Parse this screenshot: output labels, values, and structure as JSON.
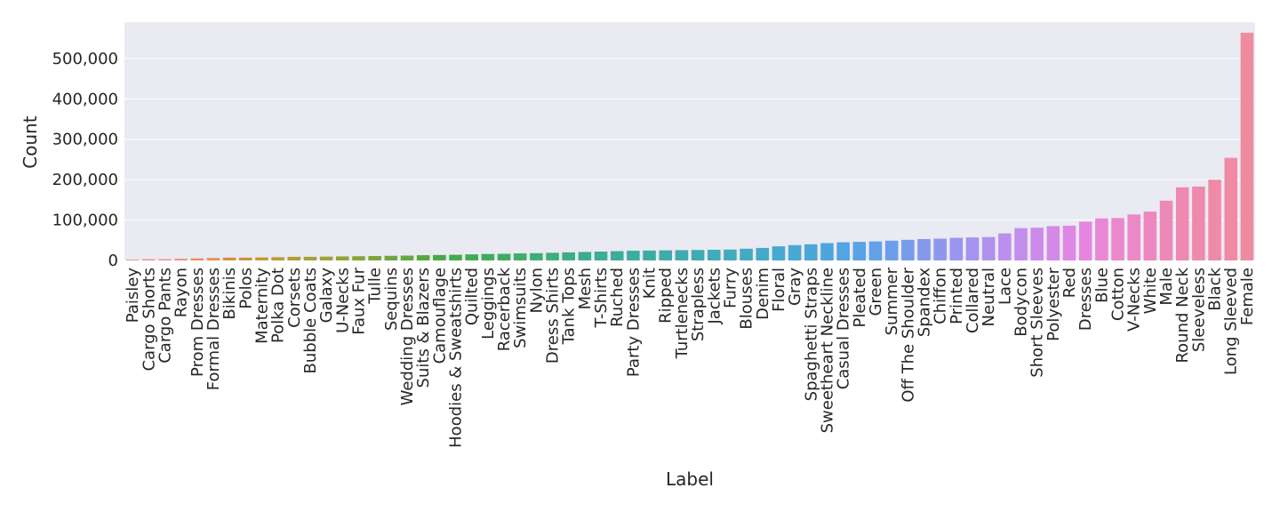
{
  "chart_data": {
    "type": "bar",
    "xlabel": "Label",
    "ylabel": "Count",
    "ylim": [
      0,
      590000
    ],
    "y_ticks": [
      0,
      100000,
      200000,
      300000,
      400000,
      500000
    ],
    "y_tick_labels": [
      "0",
      "100,000",
      "200,000",
      "300,000",
      "400,000",
      "500,000"
    ],
    "grid": true,
    "categories": [
      "Paisley",
      "Cargo Shorts",
      "Cargo Pants",
      "Rayon",
      "Prom Dresses",
      "Formal Dresses",
      "Bikinis",
      "Polos",
      "Maternity",
      "Polka Dot",
      "Corsets",
      "Bubble Coats",
      "Galaxy",
      "U-Necks",
      "Faux Fur",
      "Tulle",
      "Sequins",
      "Wedding Dresses",
      "Suits & Blazers",
      "Camouflage",
      "Hoodies & Sweatshirts",
      "Quilted",
      "Leggings",
      "Racerback",
      "Swimsuits",
      "Nylon",
      "Dress Shirts",
      "Tank Tops",
      "Mesh",
      "T-Shirts",
      "Ruched",
      "Party Dresses",
      "Knit",
      "Ripped",
      "Turtlenecks",
      "Strapless",
      "Jackets",
      "Furry",
      "Blouses",
      "Denim",
      "Floral",
      "Gray",
      "Spaghetti Straps",
      "Sweetheart Neckline",
      "Casual Dresses",
      "Pleated",
      "Green",
      "Summer",
      "Off The Shoulder",
      "Spandex",
      "Chiffon",
      "Printed",
      "Collared",
      "Neutral",
      "Lace",
      "Bodycon",
      "Short Sleeves",
      "Polyester",
      "Red",
      "Dresses",
      "Blue",
      "Cotton",
      "V-Necks",
      "White",
      "Male",
      "Round Neck",
      "Sleeveless",
      "Black",
      "Long Sleeved",
      "Female"
    ],
    "values": [
      2000,
      3000,
      3000,
      4000,
      5000,
      6000,
      7000,
      7000,
      7500,
      8000,
      9000,
      9000,
      9500,
      10000,
      10500,
      11000,
      11500,
      12000,
      13000,
      13500,
      14000,
      15000,
      16000,
      16500,
      17500,
      18000,
      19000,
      20000,
      21000,
      22000,
      23000,
      24000,
      24500,
      25000,
      25500,
      26000,
      26500,
      27000,
      29000,
      31000,
      35000,
      38000,
      40000,
      43000,
      45000,
      46000,
      47000,
      49000,
      51000,
      53000,
      54000,
      56000,
      57000,
      58000,
      67000,
      80000,
      81000,
      85000,
      86000,
      96000,
      104000,
      105000,
      114000,
      121000,
      148000,
      181000,
      183000,
      200000,
      254000,
      564000
    ],
    "colors": [
      "#f0879a",
      "#ef879b",
      "#ef8a7e",
      "#ef8b6d",
      "#ec8c5a",
      "#e8904c",
      "#d48e3d",
      "#c99340",
      "#c29a36",
      "#b89b36",
      "#b09e36",
      "#a6a138",
      "#9ea23a",
      "#94a336",
      "#8aa53a",
      "#7ea53a",
      "#72a63e",
      "#64a83e",
      "#56a93f",
      "#48aa44",
      "#42ab4a",
      "#40ac54",
      "#3fac5c",
      "#3fac64",
      "#3fad6c",
      "#3fae74",
      "#3fae7c",
      "#3ead86",
      "#3dad8e",
      "#3dad94",
      "#3dad9a",
      "#3eaca0",
      "#3eaca5",
      "#3fabaa",
      "#40abae",
      "#41abb3",
      "#42abb8",
      "#43abbd",
      "#44aac2",
      "#45aac8",
      "#47a9cd",
      "#49a8d3",
      "#4ba7d8",
      "#4ea5de",
      "#52a4e3",
      "#58a2e6",
      "#62a0e8",
      "#6c9ee9",
      "#789ceb",
      "#8499ec",
      "#8f97ed",
      "#9a95ee",
      "#a593ef",
      "#b091ee",
      "#ba8fed",
      "#c38dec",
      "#cc8beb",
      "#d589e9",
      "#de87e5",
      "#e685e0",
      "#ea86d6",
      "#ea87cd",
      "#eb88c6",
      "#ec88bf",
      "#ed89b8",
      "#ee89b2",
      "#ee89ac",
      "#ef8aa7",
      "#ef8aa2",
      "#ef8b9e"
    ]
  }
}
